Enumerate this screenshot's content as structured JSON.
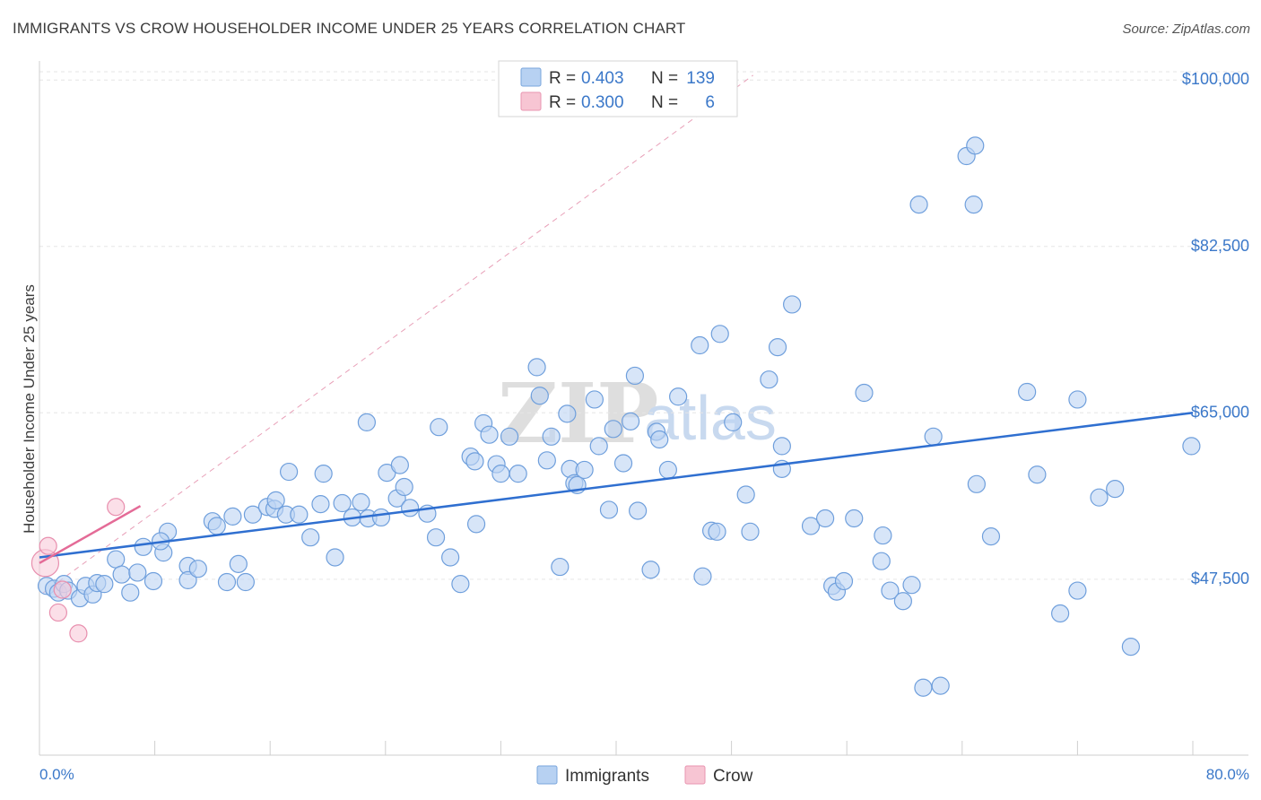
{
  "header": {
    "title": "IMMIGRANTS VS CROW HOUSEHOLDER INCOME UNDER 25 YEARS CORRELATION CHART",
    "source": "Source: ZipAtlas.com"
  },
  "watermark": {
    "zip": "ZIP",
    "atlas": "atlas"
  },
  "legend_box": {
    "rows": [
      {
        "r_label": "R =",
        "r_value": "0.403",
        "n_label": "N =",
        "n_value": "139",
        "color": "#b7d1f2"
      },
      {
        "r_label": "R =",
        "r_value": "0.300",
        "n_label": "N =",
        "n_value": "6",
        "color": "#f7c5d3"
      }
    ]
  },
  "bottom_legend": [
    {
      "label": "Immigrants",
      "color": "#b7d1f2"
    },
    {
      "label": "Crow",
      "color": "#f7c5d3"
    }
  ],
  "chart_data": {
    "type": "scatter",
    "title": "IMMIGRANTS VS CROW HOUSEHOLDER INCOME UNDER 25 YEARS CORRELATION CHART",
    "xlabel": "",
    "ylabel": "Householder Income Under 25 years",
    "xlim": [
      0,
      80
    ],
    "ylim": [
      29000,
      102000
    ],
    "x_tick_labels": [
      {
        "value": 0,
        "label": "0.0%"
      },
      {
        "value": 80,
        "label": "80.0%"
      }
    ],
    "y_tick_labels": [
      {
        "value": 47500,
        "label": "$47,500"
      },
      {
        "value": 65000,
        "label": "$65,000"
      },
      {
        "value": 82500,
        "label": "$82,500"
      },
      {
        "value": 100000,
        "label": "$100,000"
      }
    ],
    "grid": true,
    "colors": {
      "immigrants": "#3a7bd5",
      "crow": "#e8709a"
    },
    "series": [
      {
        "name": "Immigrants",
        "r": 0.403,
        "n": 139,
        "trend": [
          [
            0,
            49800
          ],
          [
            80,
            65000
          ]
        ],
        "points": [
          [
            0.5,
            46.8
          ],
          [
            1.0,
            46.5
          ],
          [
            1.3,
            46.1
          ],
          [
            1.7,
            47.0
          ],
          [
            2.0,
            46.3
          ],
          [
            2.8,
            45.5
          ],
          [
            3.2,
            46.8
          ],
          [
            3.7,
            45.9
          ],
          [
            4.0,
            47.1
          ],
          [
            4.5,
            47.0
          ],
          [
            5.3,
            49.6
          ],
          [
            5.7,
            48.0
          ],
          [
            6.3,
            46.1
          ],
          [
            6.8,
            48.2
          ],
          [
            7.2,
            50.9
          ],
          [
            7.9,
            47.3
          ],
          [
            8.6,
            50.3
          ],
          [
            8.9,
            52.5
          ],
          [
            8.4,
            51.5
          ],
          [
            10.3,
            48.9
          ],
          [
            10.3,
            47.4
          ],
          [
            11.0,
            48.6
          ],
          [
            12.0,
            53.6
          ],
          [
            12.3,
            53.1
          ],
          [
            13.0,
            47.2
          ],
          [
            13.4,
            54.1
          ],
          [
            13.8,
            49.1
          ],
          [
            14.3,
            47.2
          ],
          [
            14.8,
            54.3
          ],
          [
            15.8,
            55.1
          ],
          [
            16.3,
            54.9
          ],
          [
            16.4,
            55.8
          ],
          [
            17.1,
            54.3
          ],
          [
            17.3,
            58.8
          ],
          [
            18.0,
            54.3
          ],
          [
            18.8,
            51.9
          ],
          [
            19.5,
            55.4
          ],
          [
            19.7,
            58.6
          ],
          [
            20.5,
            49.8
          ],
          [
            21.0,
            55.5
          ],
          [
            21.7,
            54.0
          ],
          [
            22.3,
            55.6
          ],
          [
            22.7,
            64.0
          ],
          [
            22.8,
            53.9
          ],
          [
            23.7,
            54.0
          ],
          [
            24.1,
            58.7
          ],
          [
            24.8,
            56.0
          ],
          [
            25.0,
            59.5
          ],
          [
            25.3,
            57.2
          ],
          [
            25.7,
            55.0
          ],
          [
            26.9,
            54.4
          ],
          [
            27.5,
            51.9
          ],
          [
            27.7,
            63.5
          ],
          [
            28.5,
            49.8
          ],
          [
            29.2,
            47.0
          ],
          [
            29.9,
            60.4
          ],
          [
            30.2,
            59.9
          ],
          [
            30.3,
            53.3
          ],
          [
            30.8,
            63.9
          ],
          [
            31.2,
            62.7
          ],
          [
            31.7,
            59.6
          ],
          [
            32.0,
            58.6
          ],
          [
            32.6,
            62.5
          ],
          [
            33.2,
            58.6
          ],
          [
            34.5,
            69.8
          ],
          [
            34.7,
            66.8
          ],
          [
            35.2,
            60.0
          ],
          [
            35.5,
            62.5
          ],
          [
            36.6,
            64.9
          ],
          [
            36.1,
            48.8
          ],
          [
            36.8,
            59.1
          ],
          [
            37.1,
            57.6
          ],
          [
            37.3,
            57.4
          ],
          [
            37.8,
            59.0
          ],
          [
            39.5,
            54.8
          ],
          [
            38.5,
            66.4
          ],
          [
            38.8,
            61.5
          ],
          [
            39.8,
            63.3
          ],
          [
            40.5,
            59.7
          ],
          [
            41.3,
            68.9
          ],
          [
            41.5,
            54.7
          ],
          [
            41.0,
            64.1
          ],
          [
            42.4,
            48.5
          ],
          [
            42.8,
            63.0
          ],
          [
            43.0,
            62.2
          ],
          [
            44.3,
            66.7
          ],
          [
            43.6,
            59.0
          ],
          [
            45.8,
            72.1
          ],
          [
            46.0,
            47.8
          ],
          [
            46.6,
            52.6
          ],
          [
            47.0,
            52.5
          ],
          [
            47.2,
            73.3
          ],
          [
            48.1,
            64.0
          ],
          [
            49.0,
            56.4
          ],
          [
            49.3,
            52.5
          ],
          [
            50.6,
            68.5
          ],
          [
            51.2,
            71.9
          ],
          [
            51.5,
            59.1
          ],
          [
            51.5,
            61.5
          ],
          [
            52.2,
            76.4
          ],
          [
            53.5,
            53.1
          ],
          [
            54.5,
            53.9
          ],
          [
            55.0,
            46.8
          ],
          [
            55.3,
            46.2
          ],
          [
            55.8,
            47.3
          ],
          [
            56.5,
            53.9
          ],
          [
            57.2,
            67.1
          ],
          [
            58.4,
            49.4
          ],
          [
            58.5,
            52.1
          ],
          [
            59.0,
            46.3
          ],
          [
            59.9,
            45.2
          ],
          [
            60.5,
            46.9
          ],
          [
            61.0,
            86.9
          ],
          [
            61.3,
            36.1
          ],
          [
            62.0,
            62.5
          ],
          [
            62.5,
            36.3
          ],
          [
            64.3,
            92.0
          ],
          [
            64.8,
            86.9
          ],
          [
            64.9,
            93.1
          ],
          [
            65.0,
            57.5
          ],
          [
            66.0,
            52.0
          ],
          [
            68.5,
            67.2
          ],
          [
            69.2,
            58.5
          ],
          [
            70.8,
            43.9
          ],
          [
            72.0,
            46.3
          ],
          [
            72.0,
            66.4
          ],
          [
            73.5,
            56.1
          ],
          [
            74.6,
            57.0
          ],
          [
            75.7,
            40.4
          ],
          [
            79.9,
            61.5
          ]
        ]
      },
      {
        "name": "Crow",
        "r": 0.3,
        "n": 6,
        "trend": [
          [
            0,
            49200
          ],
          [
            7,
            55200
          ]
        ],
        "points": [
          [
            0.4,
            49.2
          ],
          [
            0.6,
            51.0
          ],
          [
            1.6,
            46.4
          ],
          [
            1.3,
            44.0
          ],
          [
            2.7,
            41.8
          ],
          [
            5.3,
            55.1
          ]
        ]
      }
    ]
  }
}
